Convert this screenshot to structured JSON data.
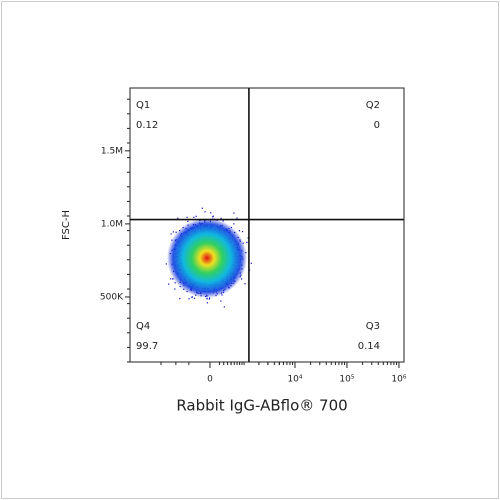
{
  "chart_data": {
    "type": "density",
    "x_label": "Rabbit IgG-ABflo® 700",
    "y_label": "FSC-H",
    "x_scale": "biexponential",
    "xlim": [
      -8000,
      1250000
    ],
    "xticks": [
      0,
      {
        "value": 10000,
        "label": "10⁴"
      },
      {
        "value": 100000,
        "label": "10⁵"
      },
      {
        "value": 1000000,
        "label": "10⁶"
      }
    ],
    "ylim": [
      55000,
      1930000
    ],
    "yticks": [
      {
        "value": 500000,
        "label": "500K"
      },
      {
        "value": 1000000,
        "label": "1.0M"
      },
      {
        "value": 1500000,
        "label": "1.5M"
      }
    ],
    "gate": {
      "x": 1260,
      "y": 1030000
    },
    "quadrants": [
      {
        "name": "Q1",
        "value": 0.12
      },
      {
        "name": "Q2",
        "value": 0
      },
      {
        "name": "Q3",
        "value": 0.14
      },
      {
        "name": "Q4",
        "value": 99.7
      }
    ]
  }
}
